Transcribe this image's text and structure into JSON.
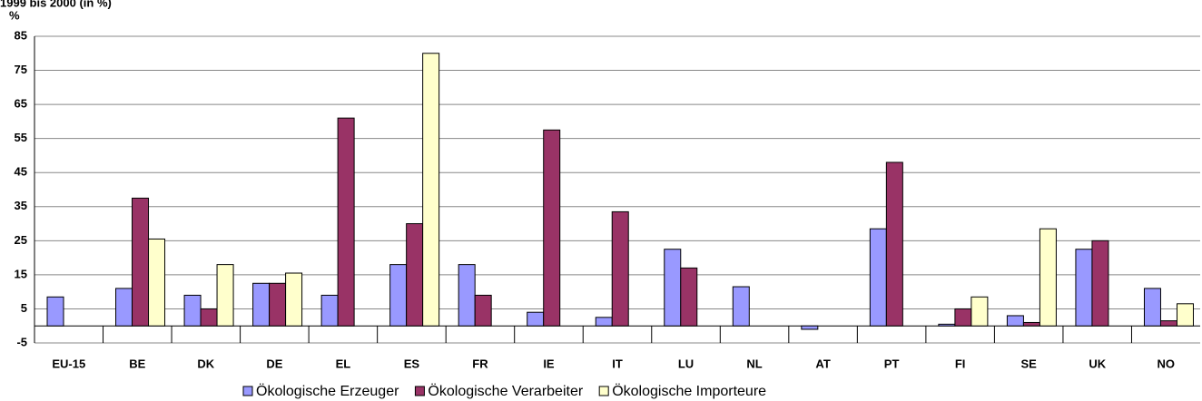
{
  "chart_data": {
    "type": "bar",
    "title": "1999 bis 2000 (in %)",
    "y_label": "%",
    "categories": [
      "EU-15",
      "BE",
      "DK",
      "DE",
      "EL",
      "ES",
      "FR",
      "IE",
      "IT",
      "LU",
      "NL",
      "AT",
      "PT",
      "FI",
      "SE",
      "UK",
      "NO"
    ],
    "series": [
      {
        "name": "Ökologische Erzeuger",
        "color": "#9999ff",
        "values": [
          8.5,
          11,
          9,
          12.5,
          9,
          18,
          18,
          4,
          2.5,
          22.5,
          11.5,
          -1,
          28.5,
          0.5,
          3,
          22.5,
          11
        ]
      },
      {
        "name": "Ökologische Verarbeiter",
        "color": "#993366",
        "values": [
          null,
          37.5,
          5,
          12.5,
          61,
          30,
          9,
          57.5,
          33.5,
          17,
          null,
          null,
          48,
          5,
          1,
          25,
          1.5
        ]
      },
      {
        "name": "Ökologische Importeure",
        "color": "#ffffcc",
        "values": [
          null,
          25.5,
          18,
          15.5,
          null,
          80,
          null,
          null,
          null,
          null,
          null,
          null,
          null,
          8.5,
          28.5,
          null,
          6.5
        ]
      }
    ],
    "ylim": [
      -5,
      85
    ],
    "yticks": [
      -5,
      5,
      15,
      25,
      35,
      45,
      55,
      65,
      75,
      85
    ],
    "grid": true,
    "legend": "bottom"
  }
}
